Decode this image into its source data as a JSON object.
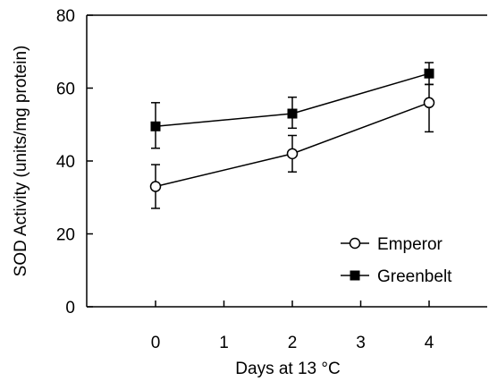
{
  "chart_data": {
    "type": "line",
    "xlabel": "Days at 13 °C",
    "ylabel": "SOD Activity (units/mg protein)",
    "xlim": [
      -1,
      5
    ],
    "ylim": [
      0,
      80
    ],
    "x_ticks": [
      0,
      1,
      2,
      3,
      4
    ],
    "y_ticks": [
      0,
      20,
      40,
      60,
      80
    ],
    "grid": false,
    "legend_position": "bottom-right",
    "series": [
      {
        "name": "Emperor",
        "marker": "open-circle",
        "x": [
          0,
          2,
          4
        ],
        "values": [
          33,
          42,
          56
        ],
        "error": [
          [
            6,
            6
          ],
          [
            5,
            5
          ],
          [
            8,
            5
          ]
        ]
      },
      {
        "name": "Greenbelt",
        "marker": "filled-square",
        "x": [
          0,
          2,
          4
        ],
        "values": [
          49.5,
          53,
          64
        ],
        "error": [
          [
            6,
            6.5
          ],
          [
            4,
            4.5
          ],
          [
            3,
            3
          ]
        ]
      }
    ]
  }
}
